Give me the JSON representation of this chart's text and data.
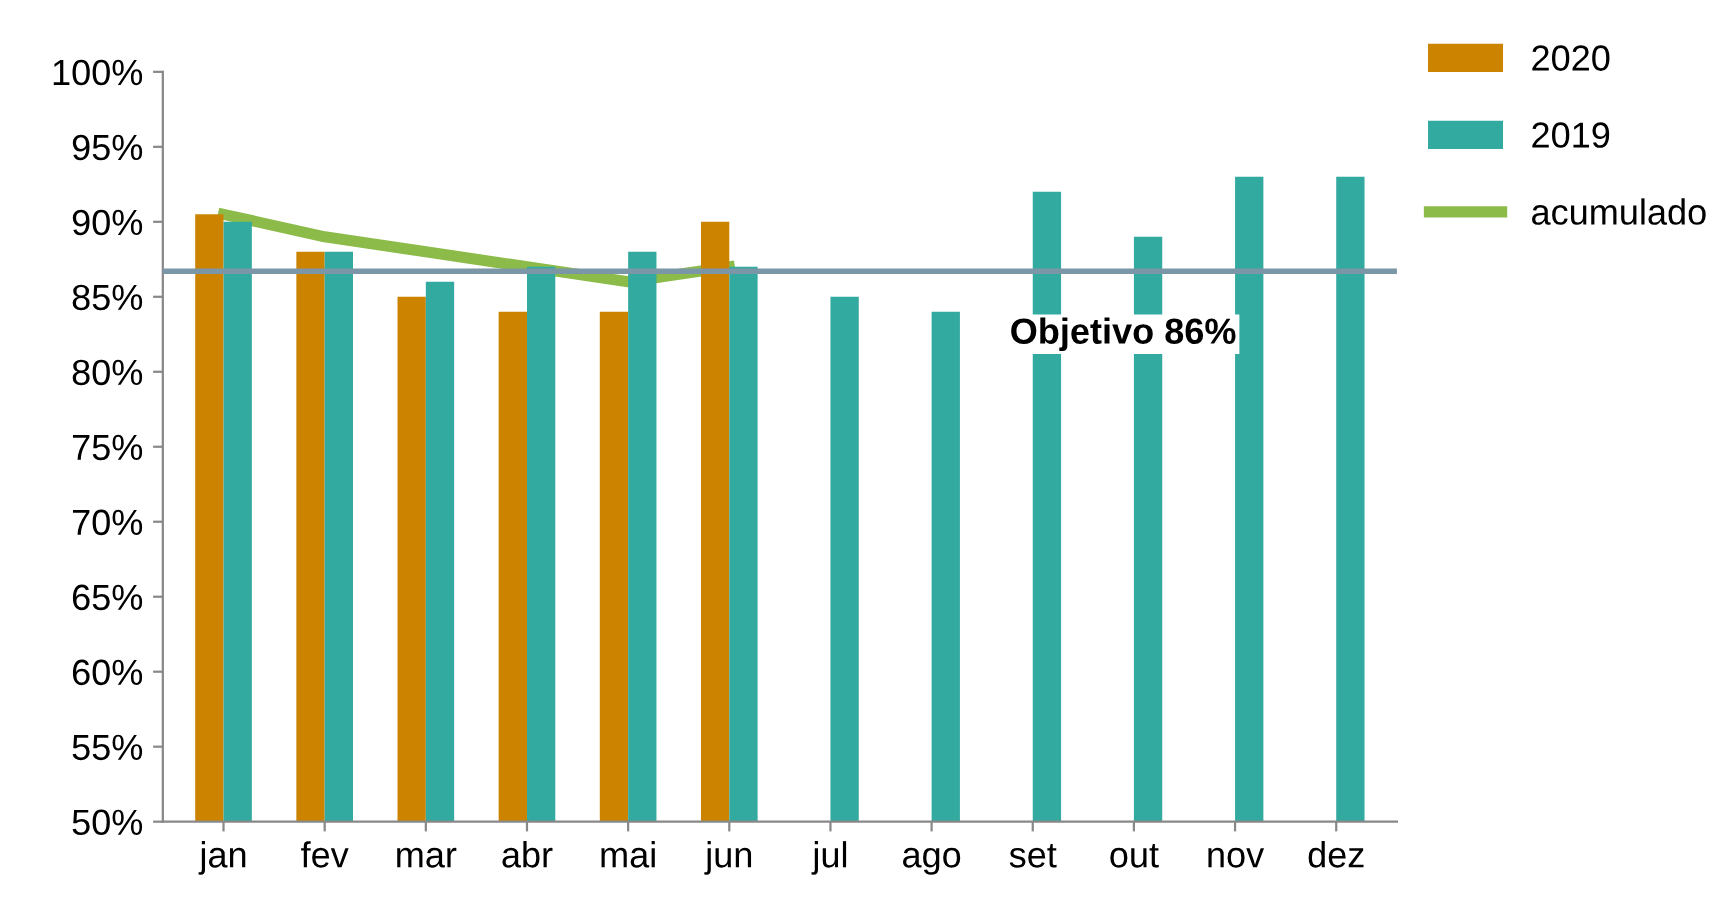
{
  "chart_data": {
    "type": "bar",
    "categories": [
      "jan",
      "fev",
      "mar",
      "abr",
      "mai",
      "jun",
      "jul",
      "ago",
      "set",
      "out",
      "nov",
      "dez"
    ],
    "series": [
      {
        "name": "2020",
        "color": "#cc8400",
        "values": [
          90.5,
          88,
          85,
          84,
          84,
          90,
          null,
          null,
          null,
          null,
          null,
          null
        ]
      },
      {
        "name": "2019",
        "color": "#33aaa0",
        "values": [
          90,
          88,
          86,
          87,
          88,
          87,
          85,
          84,
          92,
          89,
          93,
          93
        ]
      },
      {
        "name": "acumulado",
        "type": "line",
        "color": "#8cbb4a",
        "values": [
          90.5,
          89,
          88,
          87,
          86,
          87,
          null,
          null,
          null,
          null,
          null,
          null
        ]
      }
    ],
    "ylim": [
      50,
      100
    ],
    "yticks": [
      {
        "value": 50,
        "label": "50%"
      },
      {
        "value": 55,
        "label": "55%"
      },
      {
        "value": 60,
        "label": "60%"
      },
      {
        "value": 65,
        "label": "65%"
      },
      {
        "value": 70,
        "label": "70%"
      },
      {
        "value": 75,
        "label": "75%"
      },
      {
        "value": 80,
        "label": "80%"
      },
      {
        "value": 85,
        "label": "85%"
      },
      {
        "value": 90,
        "label": "90%"
      },
      {
        "value": 95,
        "label": "95%"
      },
      {
        "value": 100,
        "label": "100%"
      }
    ],
    "ref_lines": [
      {
        "axis": "y",
        "value": 86.7,
        "color": "#7b96a6"
      }
    ],
    "annotations": [
      "Objetivo 86%"
    ],
    "grid": false,
    "legend": "top right"
  }
}
